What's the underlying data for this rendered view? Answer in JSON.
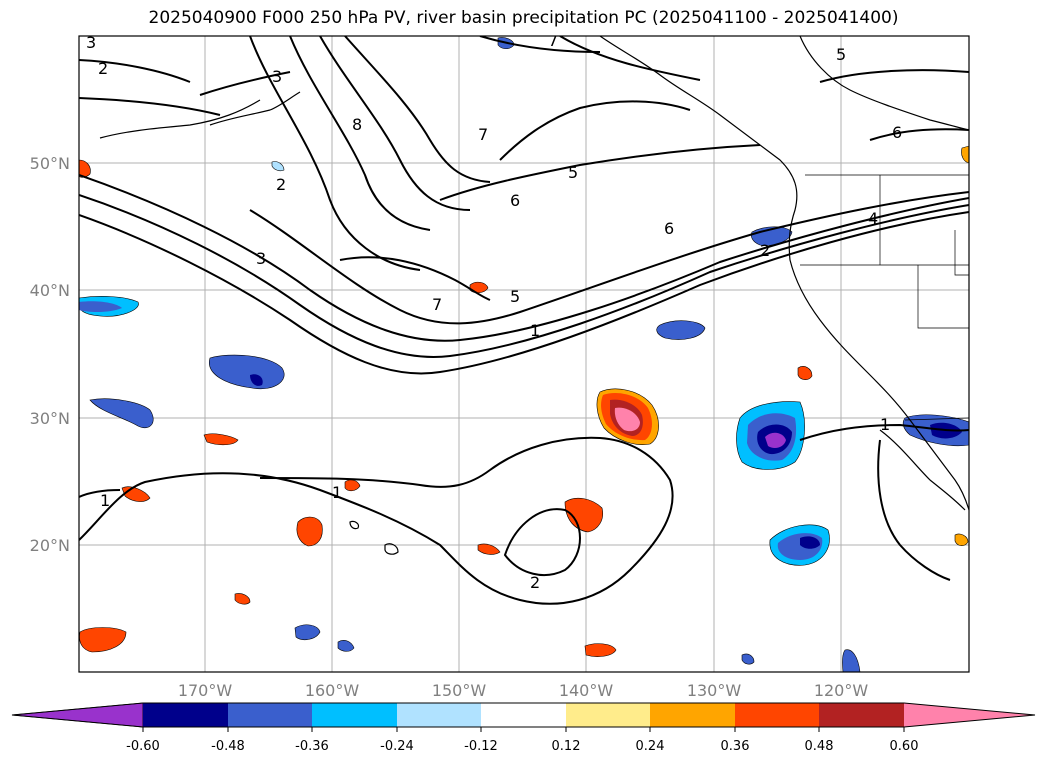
{
  "title": "2025040900 F000 250 hPa PV, river basin precipitation PC (2025041100 - 2025041400)",
  "map": {
    "lat_labels": [
      "50°N",
      "40°N",
      "30°N",
      "20°N"
    ],
    "lon_labels": [
      "170°W",
      "160°W",
      "150°W",
      "140°W",
      "130°W",
      "120°W"
    ],
    "contour_labels": [
      "3",
      "2",
      "7",
      "5",
      "3",
      "8",
      "7",
      "5",
      "6",
      "6",
      "4",
      "2",
      "3",
      "7",
      "5",
      "1",
      "1",
      "1",
      "1",
      "2",
      "2",
      "6"
    ]
  },
  "colorbar": {
    "ticks": [
      "-0.60",
      "-0.48",
      "-0.36",
      "-0.24",
      "-0.12",
      "0.12",
      "0.24",
      "0.36",
      "0.48",
      "0.60"
    ],
    "colors": [
      "#9932cc",
      "#00008b",
      "#3a5fcd",
      "#00bfff",
      "#b0e2ff",
      "#ffffff",
      "#ffec8b",
      "#ffa500",
      "#ff4500",
      "#b22222",
      "#ff82ab"
    ]
  }
}
